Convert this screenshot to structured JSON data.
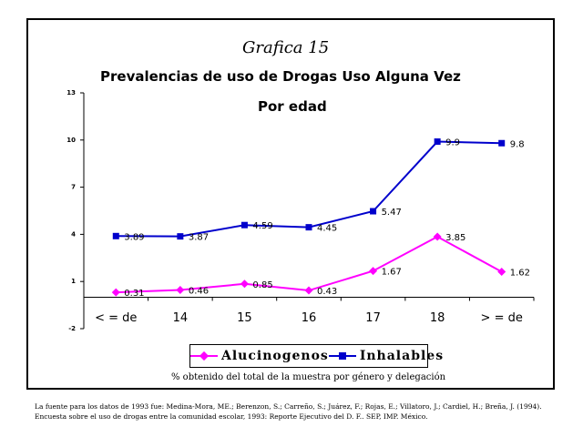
{
  "chart_data": {
    "type": "line",
    "title": "Grafica 15",
    "subtitle_1": "Prevalencias de uso de Drogas Uso Alguna Vez",
    "subtitle_2": "Por edad",
    "categories": [
      "< = de",
      "14",
      "15",
      "16",
      "17",
      "18",
      "> = de"
    ],
    "y_ticks": [
      "13",
      "10",
      "7",
      "4",
      "1",
      "-2"
    ],
    "ylim": [
      -2,
      13
    ],
    "grid": false,
    "legend_position": "bottom",
    "series": [
      {
        "name": "Alucinogenos",
        "color": "#ff00ff",
        "marker": "diamond",
        "values": [
          0.31,
          0.46,
          0.85,
          0.43,
          1.67,
          3.85,
          1.62
        ],
        "labels": [
          "0.31",
          "0.46",
          "0.85",
          "0.43",
          "1.67",
          "3.85",
          "1.62"
        ]
      },
      {
        "name": "Inhalables",
        "color": "#0000cc",
        "marker": "square",
        "values": [
          3.89,
          3.87,
          4.59,
          4.45,
          5.47,
          9.9,
          9.8
        ],
        "labels": [
          "3.89",
          "3.87",
          "4.59",
          "4.45",
          "5.47",
          "9.9",
          "9.8"
        ]
      }
    ]
  },
  "note": "% obtenido del total de la muestra por género y delegación",
  "footer": {
    "line1": "La fuente para los datos de 1993 fue: Medina-Mora, ME.; Berenzon, S.; Carreño, S.; Juárez, F.; Rojas, E.; Villatoro, J.; Cardiel, H.; Breña, J. (1994).",
    "line2": "Encuesta sobre el uso de drogas entre la comunidad escolar, 1993: Reporte Ejecutivo del D. F.. SEP, IMP. México."
  }
}
